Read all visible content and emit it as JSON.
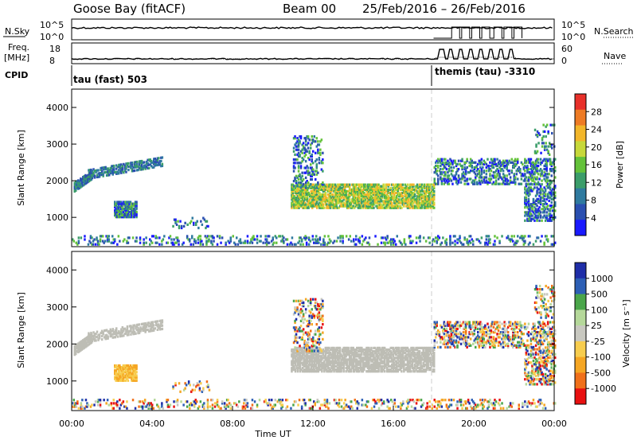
{
  "header": {
    "station": "Goose Bay (fitACF)",
    "beam": "Beam 00",
    "dates": "25/Feb/2016 – 26/Feb/2016"
  },
  "summary_panel": {
    "nsky_label": "N.Sky",
    "nsearch_label": "N.Search",
    "nsky_ticks": [
      "10^5",
      "10^0"
    ],
    "freq_label_line1": "Freq.",
    "freq_label_line2": "[MHz]",
    "freq_ticks": [
      "18",
      "8"
    ],
    "nave_label": "Nave",
    "nave_ticks": [
      "60",
      "0"
    ],
    "cpid_label": "CPID",
    "cpid_1": "tau (fast) 503",
    "cpid_2": "themis (tau) -3310"
  },
  "colors": {
    "power_scale": [
      "#1a1aff",
      "#2a4fb0",
      "#2f7a9f",
      "#3b9d6a",
      "#64c23a",
      "#c7d83a",
      "#f2b62a",
      "#ee7b25",
      "#e8302a"
    ],
    "velocity_scale": [
      "#e81010",
      "#f0701a",
      "#f5a623",
      "#f7cd4e",
      "#c8c8c0",
      "#b5d89a",
      "#4aa64a",
      "#2d5fb5",
      "#1f2ea8"
    ],
    "ground_scatter": "#bdbdb5"
  },
  "chart_data": [
    {
      "type": "heatmap",
      "name": "power",
      "ylabel": "Slant Range [km]",
      "yticks": [
        "4000",
        "3000",
        "2000",
        "1000"
      ],
      "ylim": [
        200,
        4500
      ],
      "xlim_hours": [
        0,
        24
      ],
      "colorbar_label": "Power [dB]",
      "colorbar_ticks": [
        "28",
        "24",
        "20",
        "16",
        "12",
        "8",
        "4"
      ],
      "colorbar_range": [
        0,
        30
      ]
    },
    {
      "type": "heatmap",
      "name": "velocity",
      "ylabel": "Slant Range [km]",
      "yticks": [
        "4000",
        "3000",
        "2000",
        "1000"
      ],
      "ylim": [
        200,
        4500
      ],
      "xlim_hours": [
        0,
        24
      ],
      "colorbar_label": "Velocity [m s⁻¹]",
      "colorbar_ticks": [
        "1000",
        "500",
        "100",
        "25",
        "-25",
        "-100",
        "-500",
        "-1000"
      ],
      "x_ticks": [
        "00:00",
        "04:00",
        "08:00",
        "12:00",
        "16:00",
        "20:00",
        "00:00"
      ],
      "xlabel": "Time UT"
    }
  ]
}
